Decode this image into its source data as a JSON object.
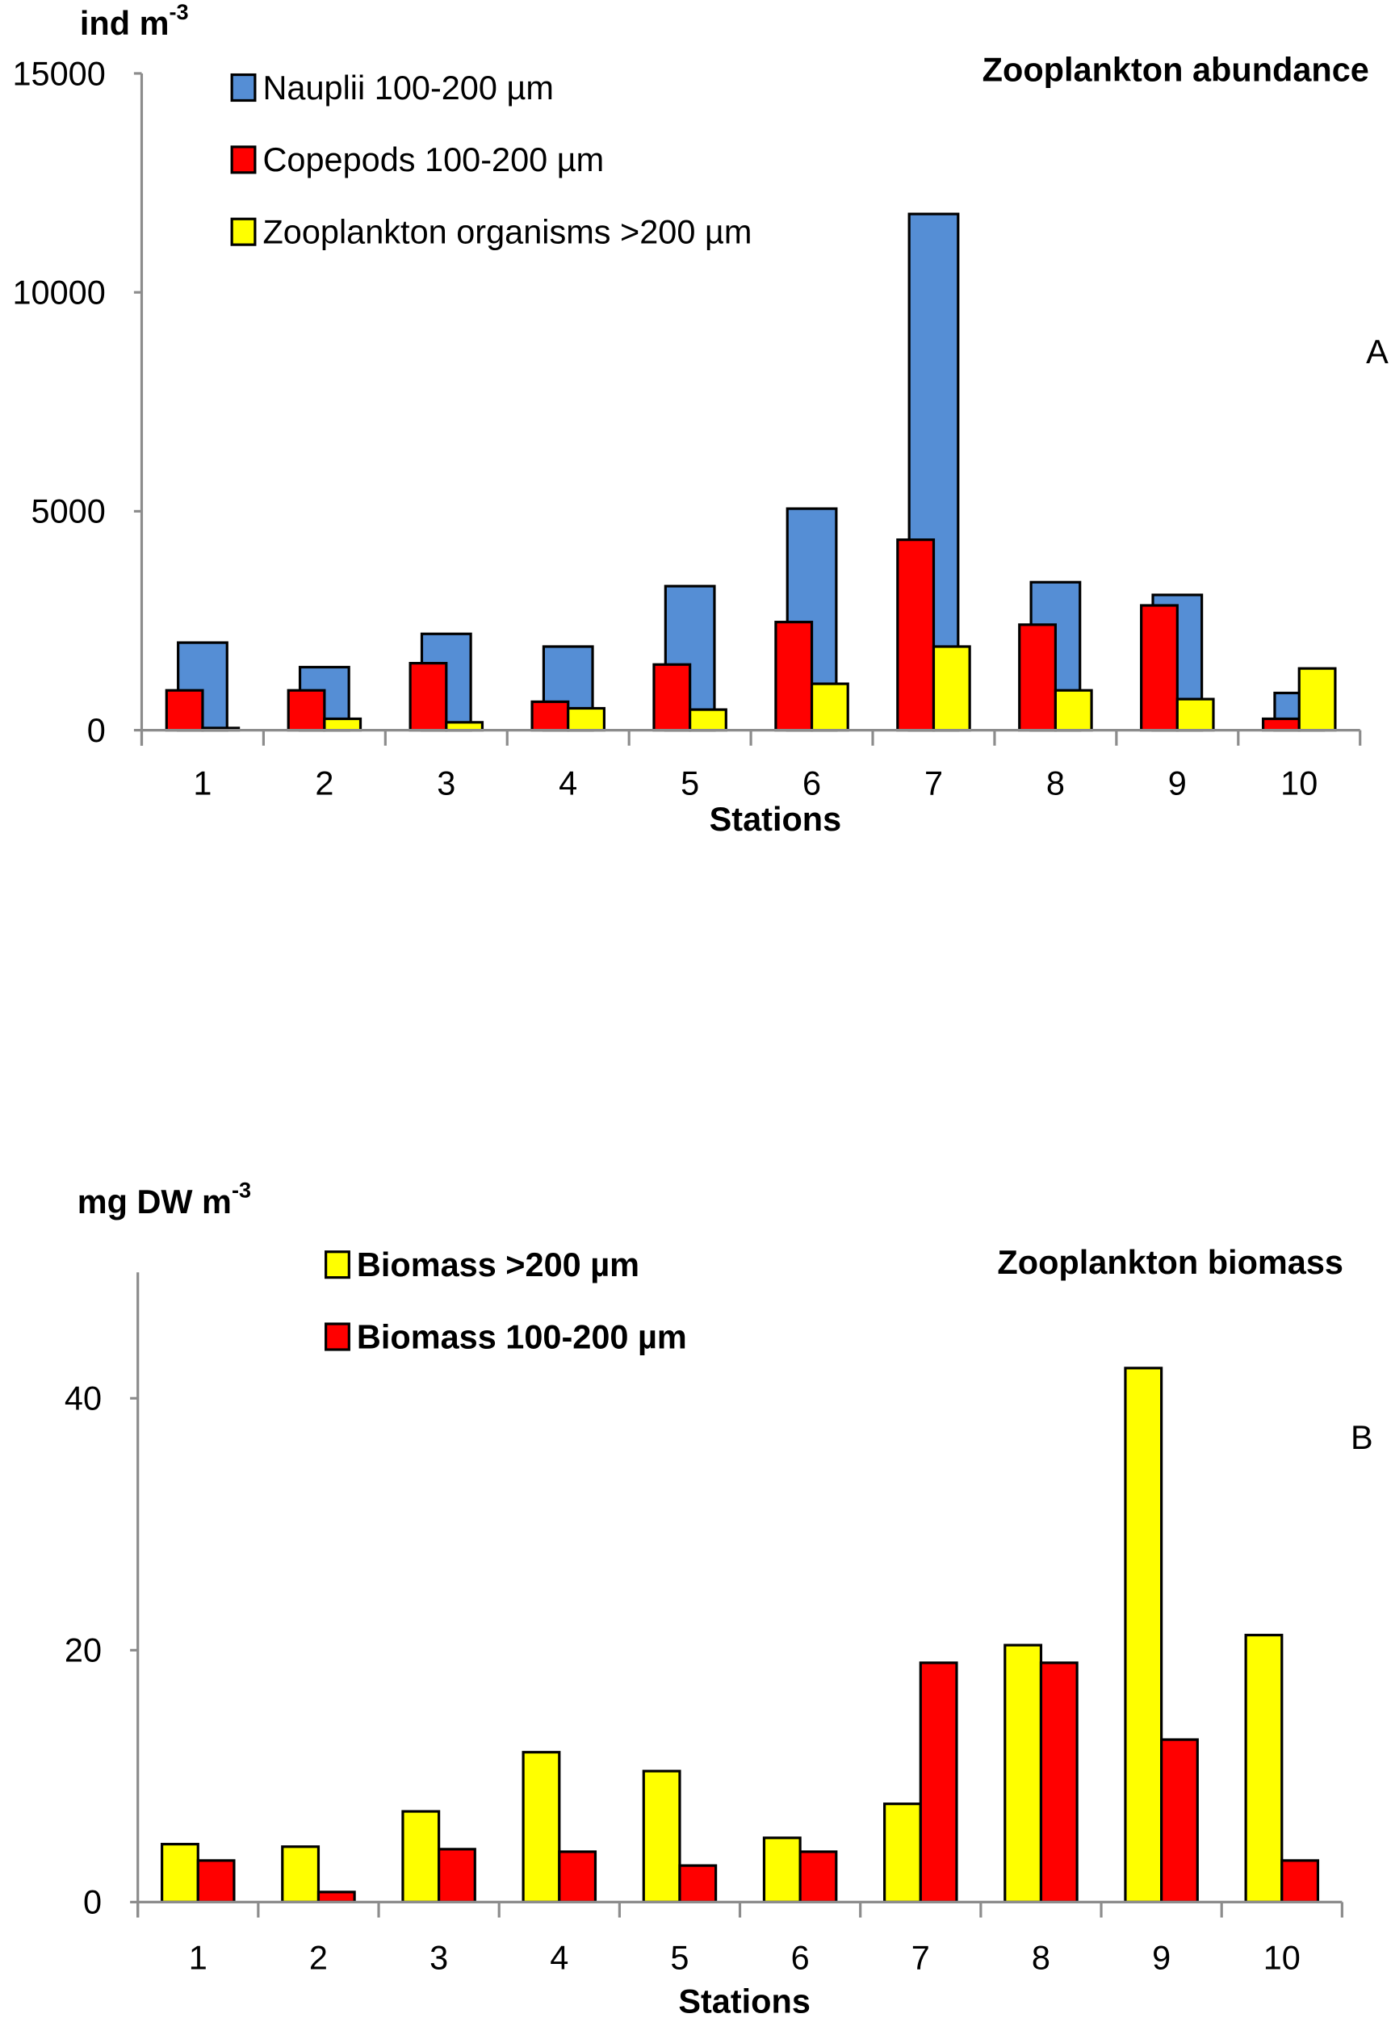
{
  "chart_data": [
    {
      "type": "bar",
      "title": "Zooplankton abundance",
      "panel_label": "A",
      "ylabel": "ind m",
      "ylabel_sup": "-3",
      "xlabel": "Stations",
      "ylim": [
        0,
        15000
      ],
      "yticks": [
        "0",
        "5000",
        "10000",
        "15000"
      ],
      "ytick_values": [
        0,
        5000,
        10000,
        15000
      ],
      "categories": [
        "1",
        "2",
        "3",
        "4",
        "5",
        "6",
        "7",
        "8",
        "9",
        "10"
      ],
      "legend_placement": "top-left",
      "series": [
        {
          "name": "Nauplii  100-200 µm",
          "color": "#558ED5",
          "values": [
            2000,
            1440,
            2200,
            1910,
            3290,
            5060,
            11790,
            3380,
            3090,
            850
          ]
        },
        {
          "name": "Copepods  100-200 µm",
          "color": "#FF0000",
          "values": [
            910,
            910,
            1530,
            650,
            1500,
            2470,
            4350,
            2410,
            2850,
            260
          ]
        },
        {
          "name": "Zooplankton  organisms >200 µm",
          "color": "#FFFF00",
          "values": [
            50,
            260,
            180,
            500,
            470,
            1060,
            1910,
            910,
            710,
            1410
          ]
        }
      ]
    },
    {
      "type": "bar",
      "title": "Zooplankton biomass",
      "panel_label": "B",
      "ylabel": "mg DW m",
      "ylabel_sup": "-3",
      "xlabel": "Stations",
      "ylim": [
        0,
        50
      ],
      "yticks": [
        "0",
        "20",
        "40"
      ],
      "ytick_values": [
        0,
        20,
        40
      ],
      "categories": [
        "1",
        "2",
        "3",
        "4",
        "5",
        "6",
        "7",
        "8",
        "9",
        "10"
      ],
      "legend_placement": "top-left",
      "series": [
        {
          "name": "Biomass >200 µm",
          "color": "#FFFF00",
          "values": [
            4.6,
            4.4,
            7.2,
            11.9,
            10.4,
            5.1,
            7.8,
            20.4,
            42.4,
            21.2
          ]
        },
        {
          "name": "Biomass 100-200 µm",
          "color": "#FF0000",
          "values": [
            3.3,
            0.8,
            4.2,
            4.0,
            2.9,
            4.0,
            19.0,
            19.0,
            12.9,
            3.3
          ]
        }
      ]
    }
  ]
}
